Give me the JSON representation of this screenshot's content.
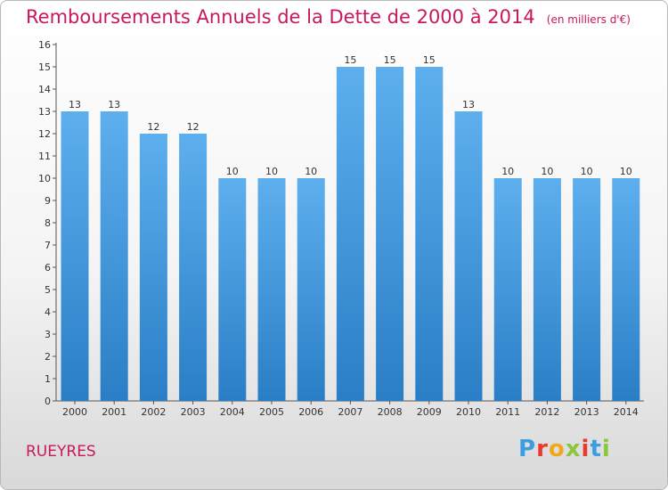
{
  "chart_data": {
    "type": "bar",
    "title": "Remboursements Annuels de la Dette de 2000 à 2014",
    "subtitle": "(en milliers d'€)",
    "categories": [
      "2000",
      "2001",
      "2002",
      "2003",
      "2004",
      "2005",
      "2006",
      "2007",
      "2008",
      "2009",
      "2010",
      "2011",
      "2012",
      "2013",
      "2014"
    ],
    "values": [
      13,
      13,
      12,
      12,
      10,
      10,
      10,
      15,
      15,
      15,
      13,
      10,
      10,
      10,
      10
    ],
    "ylim": [
      0,
      16
    ],
    "yticks": [
      0,
      1,
      2,
      3,
      4,
      5,
      6,
      7,
      8,
      9,
      10,
      11,
      12,
      13,
      14,
      15,
      16
    ],
    "bar_color_top": "#5dafee",
    "bar_color_bottom": "#2a7ec5",
    "grid": false
  },
  "place_name": "RUEYRES",
  "logo": {
    "letters": [
      "P",
      "r",
      "o",
      "x",
      "i",
      "t",
      "i"
    ],
    "colors": [
      "#3a9ee0",
      "#e8382f",
      "#f2a71b",
      "#8cc63f",
      "#e8382f",
      "#3a9ee0",
      "#8cc63f"
    ]
  }
}
